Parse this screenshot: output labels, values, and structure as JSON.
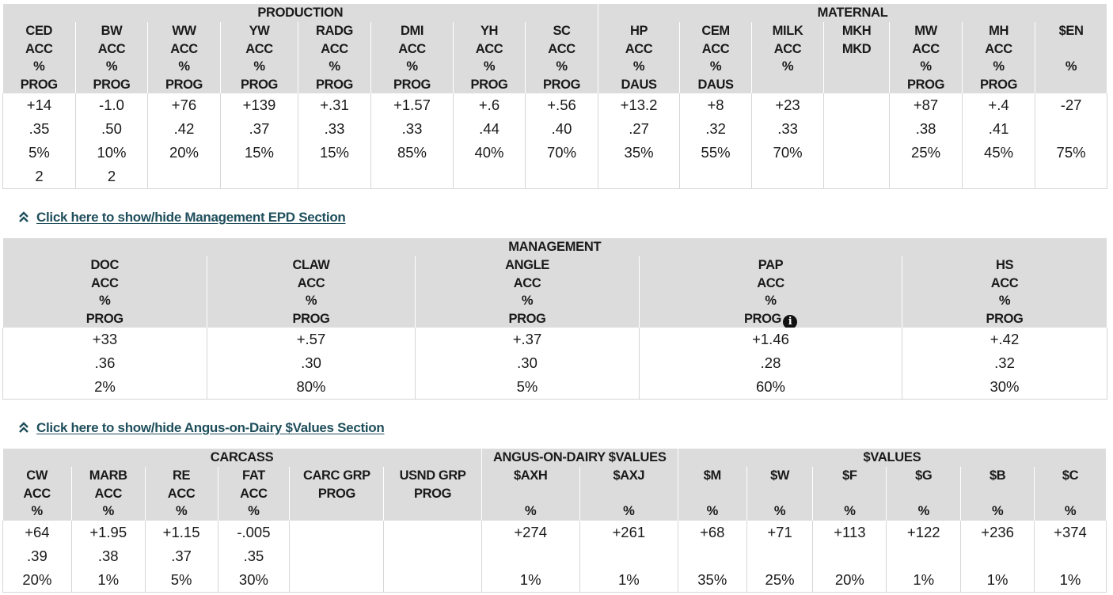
{
  "production_maternal": {
    "groups": {
      "production": "PRODUCTION",
      "maternal": "MATERNAL"
    },
    "columns": [
      {
        "h": [
          "CED",
          "ACC",
          "%",
          "PROG"
        ],
        "v": [
          "+14",
          ".35",
          "5%",
          "2"
        ]
      },
      {
        "h": [
          "BW",
          "ACC",
          "%",
          "PROG"
        ],
        "v": [
          "-1.0",
          ".50",
          "10%",
          "2"
        ]
      },
      {
        "h": [
          "WW",
          "ACC",
          "%",
          "PROG"
        ],
        "v": [
          "+76",
          ".42",
          "20%",
          ""
        ]
      },
      {
        "h": [
          "YW",
          "ACC",
          "%",
          "PROG"
        ],
        "v": [
          "+139",
          ".37",
          "15%",
          ""
        ]
      },
      {
        "h": [
          "RADG",
          "ACC",
          "%",
          "PROG"
        ],
        "v": [
          "+.31",
          ".33",
          "15%",
          ""
        ]
      },
      {
        "h": [
          "DMI",
          "ACC",
          "%",
          "PROG"
        ],
        "v": [
          "+1.57",
          ".33",
          "85%",
          ""
        ]
      },
      {
        "h": [
          "YH",
          "ACC",
          "%",
          "PROG"
        ],
        "v": [
          "+.6",
          ".44",
          "40%",
          ""
        ]
      },
      {
        "h": [
          "SC",
          "ACC",
          "%",
          "PROG"
        ],
        "v": [
          "+.56",
          ".40",
          "70%",
          ""
        ]
      },
      {
        "h": [
          "HP",
          "ACC",
          "%",
          "DAUS"
        ],
        "v": [
          "+13.2",
          ".27",
          "35%",
          ""
        ]
      },
      {
        "h": [
          "CEM",
          "ACC",
          "%",
          "DAUS"
        ],
        "v": [
          "+8",
          ".32",
          "55%",
          ""
        ]
      },
      {
        "h": [
          "MILK",
          "ACC",
          "%",
          ""
        ],
        "v": [
          "+23",
          ".33",
          "70%",
          ""
        ]
      },
      {
        "h": [
          "MKH",
          "MKD",
          "",
          ""
        ],
        "v": [
          "",
          "",
          "",
          ""
        ]
      },
      {
        "h": [
          "MW",
          "ACC",
          "%",
          "PROG"
        ],
        "v": [
          "+87",
          ".38",
          "25%",
          ""
        ]
      },
      {
        "h": [
          "MH",
          "ACC",
          "%",
          "PROG"
        ],
        "v": [
          "+.4",
          ".41",
          "45%",
          ""
        ]
      },
      {
        "h": [
          "$EN",
          "",
          "%",
          ""
        ],
        "v": [
          "-27",
          "",
          "75%",
          ""
        ]
      }
    ]
  },
  "toggle_management": {
    "label": "Click here to show/hide Management EPD Section",
    "icon": "double-chevron-up-icon"
  },
  "management": {
    "group": "MANAGEMENT",
    "columns": [
      {
        "h": [
          "DOC",
          "ACC",
          "%",
          "PROG"
        ],
        "v": [
          "+33",
          ".36",
          "2%"
        ]
      },
      {
        "h": [
          "CLAW",
          "ACC",
          "%",
          "PROG"
        ],
        "v": [
          "+.57",
          ".30",
          "80%"
        ]
      },
      {
        "h": [
          "ANGLE",
          "ACC",
          "%",
          "PROG"
        ],
        "v": [
          "+.37",
          ".30",
          "5%"
        ]
      },
      {
        "h": [
          "PAP",
          "ACC",
          "%",
          "PROG"
        ],
        "v": [
          "+1.46",
          ".28",
          "60%"
        ],
        "info": "i"
      },
      {
        "h": [
          "HS",
          "ACC",
          "%",
          "PROG"
        ],
        "v": [
          "+.42",
          ".32",
          "30%"
        ]
      }
    ]
  },
  "toggle_dairy": {
    "label": "Click here to show/hide Angus-on-Dairy $Values Section",
    "icon": "double-chevron-up-icon"
  },
  "carcass_values": {
    "groups": {
      "carcass": "CARCASS",
      "dairy": "ANGUS-ON-DAIRY $VALUES",
      "values": "$VALUES"
    },
    "columns": [
      {
        "h": [
          "CW",
          "ACC",
          "%"
        ],
        "v": [
          "+64",
          ".39",
          "20%"
        ]
      },
      {
        "h": [
          "MARB",
          "ACC",
          "%"
        ],
        "v": [
          "+1.95",
          ".38",
          "1%"
        ]
      },
      {
        "h": [
          "RE",
          "ACC",
          "%"
        ],
        "v": [
          "+1.15",
          ".37",
          "5%"
        ]
      },
      {
        "h": [
          "FAT",
          "ACC",
          "%"
        ],
        "v": [
          "-.005",
          ".35",
          "30%"
        ]
      },
      {
        "h": [
          "CARC GRP",
          "PROG",
          ""
        ],
        "v": [
          "",
          "",
          ""
        ]
      },
      {
        "h": [
          "USND GRP",
          "PROG",
          ""
        ],
        "v": [
          "",
          "",
          ""
        ]
      },
      {
        "h": [
          "$AXH",
          "",
          "%"
        ],
        "v": [
          "+274",
          "",
          "1%"
        ]
      },
      {
        "h": [
          "$AXJ",
          "",
          "%"
        ],
        "v": [
          "+261",
          "",
          "1%"
        ]
      },
      {
        "h": [
          "$M",
          "",
          "%"
        ],
        "v": [
          "+68",
          "",
          "35%"
        ]
      },
      {
        "h": [
          "$W",
          "",
          "%"
        ],
        "v": [
          "+71",
          "",
          "25%"
        ]
      },
      {
        "h": [
          "$F",
          "",
          "%"
        ],
        "v": [
          "+113",
          "",
          "20%"
        ]
      },
      {
        "h": [
          "$G",
          "",
          "%"
        ],
        "v": [
          "+122",
          "",
          "1%"
        ]
      },
      {
        "h": [
          "$B",
          "",
          "%"
        ],
        "v": [
          "+236",
          "",
          "1%"
        ]
      },
      {
        "h": [
          "$C",
          "",
          "%"
        ],
        "v": [
          "+374",
          "",
          "1%"
        ]
      }
    ]
  }
}
